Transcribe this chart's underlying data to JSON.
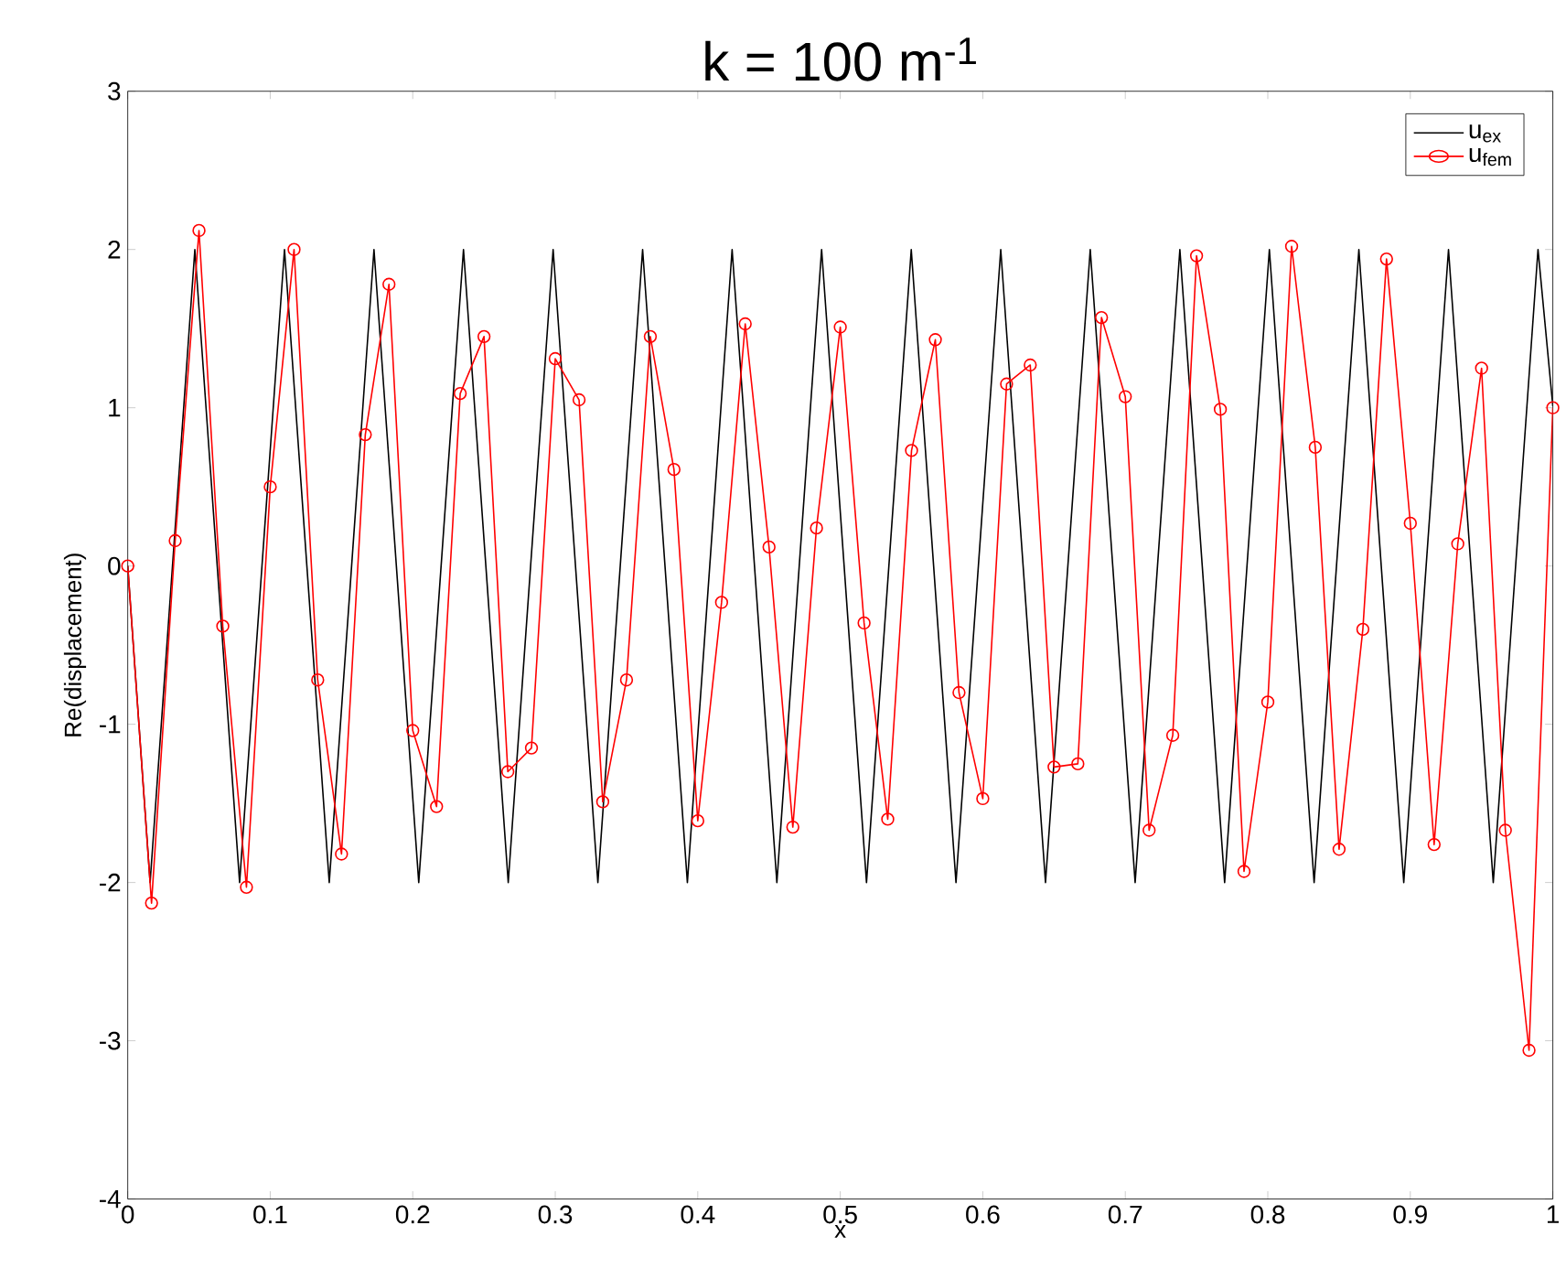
{
  "chart_data": {
    "type": "line",
    "title": "k = 100 m$^{-1}$",
    "xlabel": "x",
    "ylabel": "Re(displacement)",
    "xlim": [
      0,
      1
    ],
    "ylim": [
      -4,
      3
    ],
    "xticks": [
      0,
      0.1,
      0.2,
      0.3,
      0.4,
      0.5,
      0.6,
      0.7,
      0.8,
      0.9,
      1
    ],
    "yticks": [
      -4,
      -3,
      -2,
      -1,
      0,
      1,
      2,
      3
    ],
    "legend": "top right",
    "series": [
      {
        "name": "u$_{ex}$",
        "color": "#000000",
        "marker": "none",
        "x": [
          0,
          0.0157,
          0.0314,
          0.0471,
          0.0628,
          0.0785,
          0.0942,
          0.11,
          0.1257,
          0.1414,
          0.1571,
          0.1728,
          0.1885,
          0.2042,
          0.2199,
          0.2356,
          0.2513,
          0.267,
          0.2827,
          0.2985,
          0.3142,
          0.3299,
          0.3456,
          0.3613,
          0.377,
          0.3927,
          0.4084,
          0.4241,
          0.4398,
          0.4555,
          0.4712,
          0.4869,
          0.5027,
          0.5184,
          0.5341,
          0.5498,
          0.5655,
          0.5812,
          0.5969,
          0.6126,
          0.6283,
          0.644,
          0.6597,
          0.6754,
          0.6912,
          0.7069,
          0.7226,
          0.7383,
          0.754,
          0.7697,
          0.7854,
          0.8011,
          0.8168,
          0.8325,
          0.8482,
          0.8639,
          0.8796,
          0.8954,
          0.9111,
          0.9268,
          0.9425,
          0.9582,
          0.9739,
          0.9896,
          1.0
        ],
        "values": [
          0,
          -2,
          0,
          2,
          0,
          -2,
          0,
          2,
          0,
          -2,
          0,
          2,
          0,
          -2,
          0,
          2,
          0,
          -2,
          0,
          2,
          0,
          -2,
          0,
          2,
          0,
          -2,
          0,
          2,
          0,
          -2,
          0,
          2,
          0,
          -2,
          0,
          2,
          0,
          -2,
          0,
          2,
          0,
          -2,
          0,
          2,
          0,
          -2,
          0,
          2,
          0,
          -2,
          0,
          2,
          0,
          -2,
          0,
          2,
          0,
          -2,
          0,
          2,
          0,
          -2,
          0,
          2,
          1.01
        ]
      },
      {
        "name": "u$_{fem}$",
        "color": "#ff0000",
        "marker": "circle",
        "x": [
          0,
          0.0167,
          0.0333,
          0.05,
          0.0667,
          0.0833,
          0.1,
          0.1167,
          0.1333,
          0.15,
          0.1667,
          0.1833,
          0.2,
          0.2167,
          0.2333,
          0.25,
          0.2667,
          0.2833,
          0.3,
          0.3167,
          0.3333,
          0.35,
          0.3667,
          0.3833,
          0.4,
          0.4167,
          0.4333,
          0.45,
          0.4667,
          0.4833,
          0.5,
          0.5167,
          0.5333,
          0.55,
          0.5667,
          0.5833,
          0.6,
          0.6167,
          0.6333,
          0.65,
          0.6667,
          0.6833,
          0.7,
          0.7167,
          0.7333,
          0.75,
          0.7667,
          0.7833,
          0.8,
          0.8167,
          0.8333,
          0.85,
          0.8667,
          0.8833,
          0.9,
          0.9167,
          0.9333,
          0.95,
          0.9667,
          0.9833,
          1.0
        ],
        "values": [
          0,
          -2.13,
          0.16,
          2.12,
          -0.38,
          -2.03,
          0.5,
          2.0,
          -0.72,
          -1.82,
          0.83,
          1.78,
          -1.04,
          -1.52,
          1.09,
          1.45,
          -1.3,
          -1.15,
          1.31,
          1.05,
          -1.49,
          -0.72,
          1.45,
          0.61,
          -1.61,
          -0.23,
          1.53,
          0.12,
          -1.65,
          0.24,
          1.51,
          -0.36,
          -1.6,
          0.73,
          1.43,
          -0.8,
          -1.47,
          1.15,
          1.27,
          -1.27,
          -1.25,
          1.57,
          1.07,
          -1.67,
          -1.07,
          1.96,
          0.99,
          -1.93,
          -0.86,
          2.02,
          0.75,
          -1.79,
          -0.4,
          1.94,
          0.27,
          -1.76,
          0.14,
          1.25,
          -1.67,
          -3.06,
          1.0
        ]
      }
    ]
  }
}
